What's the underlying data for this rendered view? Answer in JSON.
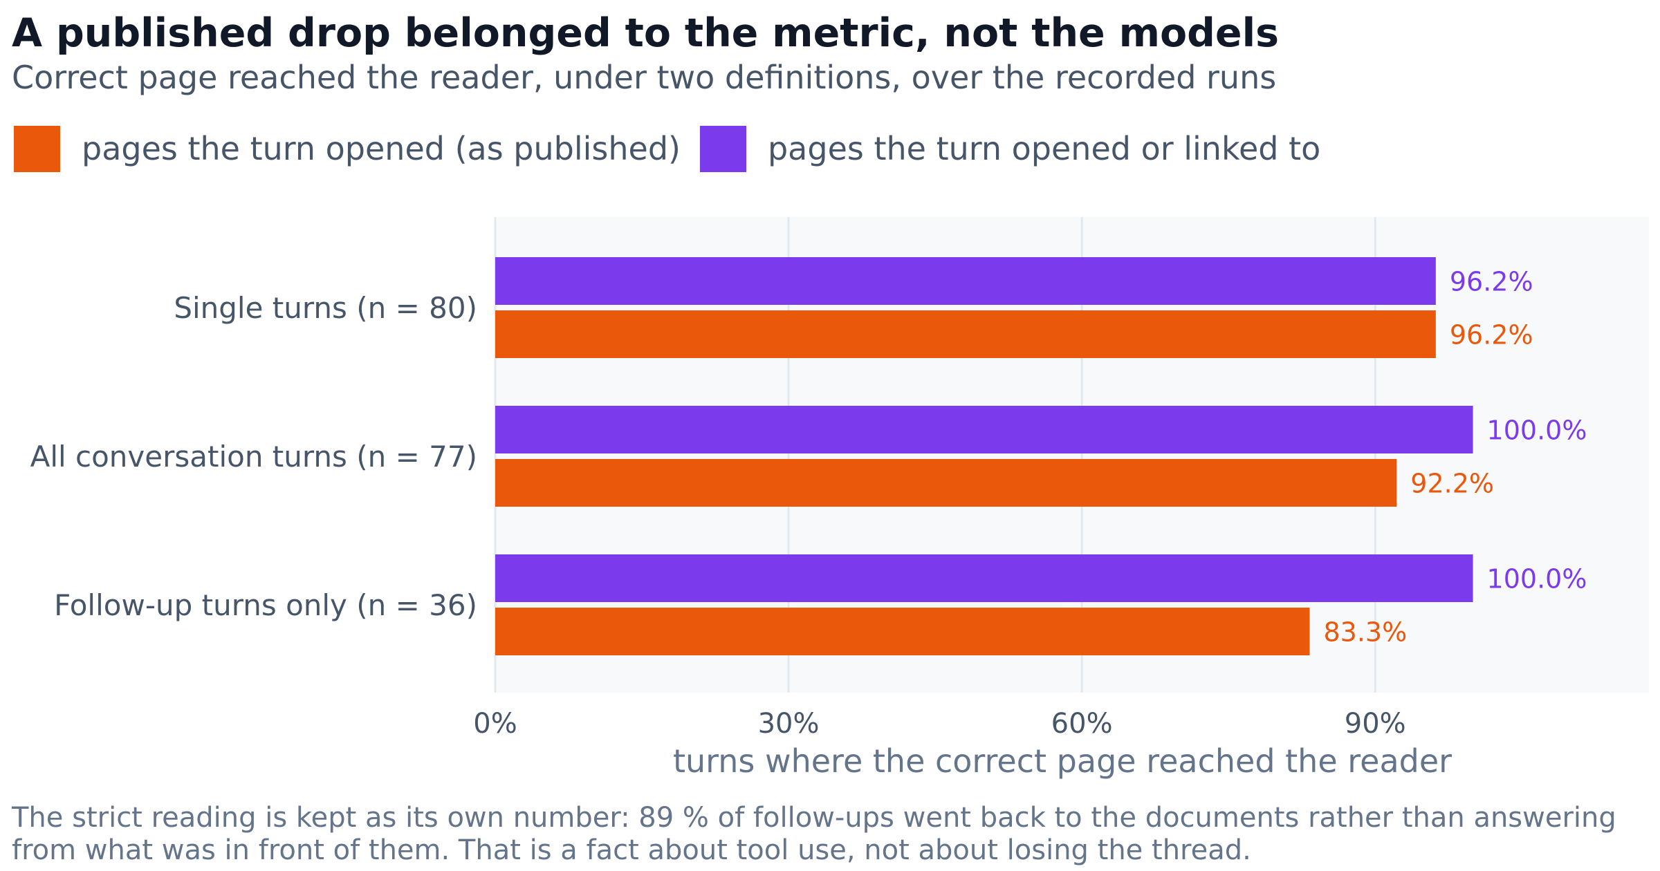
{
  "title": "A published drop belonged to the metric, not the models",
  "subtitle": "Correct page reached the reader, under two definitions, over the recorded runs",
  "footnote": "The strict reading is kept as its own number: 89 % of follow-ups went back to the documents rather than answering from what was in front of them. That is a fact about tool use, not about losing the thread.",
  "legend": [
    {
      "label": "pages the turn opened (as published)",
      "color": "#ea580c"
    },
    {
      "label": "pages the turn opened or linked to",
      "color": "#7c3aed"
    }
  ],
  "chart_data": {
    "type": "bar",
    "orientation": "horizontal",
    "title": "A published drop belonged to the metric, not the models",
    "subtitle": "Correct page reached the reader, under two definitions, over the recorded runs",
    "xlabel": "turns where the correct page reached the reader",
    "ylabel": "",
    "categories": [
      "Single turns (n = 80)",
      "All conversation turns (n = 77)",
      "Follow-up turns only (n = 36)"
    ],
    "series": [
      {
        "name": "pages the turn opened or linked to",
        "color": "#7c3aed",
        "values": [
          96.2,
          100.0,
          100.0
        ],
        "labels": [
          "96.2%",
          "100.0%",
          "100.0%"
        ]
      },
      {
        "name": "pages the turn opened (as published)",
        "color": "#ea580c",
        "values": [
          96.2,
          92.2,
          83.3
        ],
        "labels": [
          "96.2%",
          "92.2%",
          "83.3%"
        ]
      }
    ],
    "xticks": [
      0,
      30,
      60,
      90
    ],
    "xtick_labels": [
      "0%",
      "30%",
      "60%",
      "90%"
    ],
    "xlim": [
      0,
      118
    ],
    "grid": "vertical",
    "legend_position": "top-left"
  }
}
